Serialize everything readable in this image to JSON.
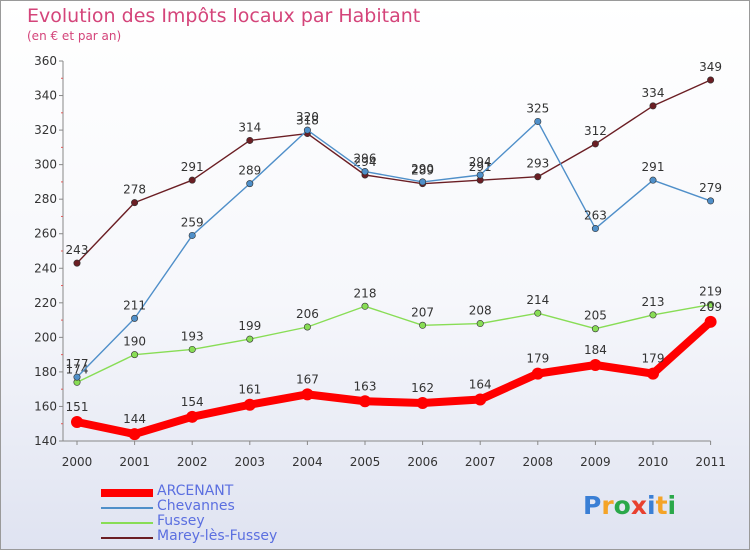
{
  "header": {
    "title": "Evolution des Impôts locaux par Habitant",
    "subtitle": "(en € et par an)"
  },
  "logo": {
    "letters": [
      "P",
      "r",
      "o",
      "x",
      "i",
      "t",
      "i"
    ],
    "colors": [
      "#3a7fd5",
      "#f4a428",
      "#2aa84a",
      "#e8402f",
      "#3a7fd5",
      "#f4a428",
      "#2aa84a"
    ]
  },
  "chart_data": {
    "type": "line",
    "title": "Evolution des Impôts locaux par Habitant",
    "subtitle": "(en € et par an)",
    "categories": [
      "2000",
      "2001",
      "2002",
      "2003",
      "2004",
      "2005",
      "2006",
      "2007",
      "2008",
      "2009",
      "2010",
      "2011"
    ],
    "ylim": [
      140,
      360
    ],
    "yticks": [
      140,
      160,
      180,
      200,
      220,
      240,
      260,
      280,
      300,
      320,
      340,
      360
    ],
    "grid": false,
    "legend_position": "bottom-left",
    "series": [
      {
        "name": "ARCENANT",
        "color": "#ff0000",
        "values": [
          151,
          144,
          154,
          161,
          167,
          163,
          162,
          164,
          179,
          184,
          179,
          209
        ],
        "labels": [
          "151",
          "144",
          "154",
          "161",
          "167",
          "163",
          "162",
          "164",
          "179",
          "184",
          "179",
          "209"
        ]
      },
      {
        "name": "Chevannes",
        "color": "#4f8fc9",
        "values": [
          177,
          211,
          259,
          289,
          320,
          296,
          290,
          294,
          325,
          263,
          291,
          279
        ],
        "labels": [
          "177",
          "211",
          "259",
          "289",
          "320",
          "296",
          "290",
          "294",
          "325",
          "263",
          "291",
          "279"
        ]
      },
      {
        "name": "Fussey",
        "color": "#88dd55",
        "values": [
          174,
          190,
          193,
          199,
          206,
          218,
          207,
          208,
          214,
          205,
          213,
          219
        ],
        "labels": [
          "174",
          "190",
          "193",
          "199",
          "206",
          "218",
          "207",
          "208",
          "214",
          "205",
          "213",
          "219"
        ]
      },
      {
        "name": "Marey-lès-Fussey",
        "color": "#6b1e24",
        "values": [
          243,
          278,
          291,
          314,
          318,
          294,
          289,
          291,
          293,
          312,
          334,
          349
        ],
        "labels": [
          "243",
          "278",
          "291",
          "314",
          "318",
          "294",
          "289",
          "291",
          "293",
          "312",
          "334",
          "349"
        ]
      }
    ]
  }
}
